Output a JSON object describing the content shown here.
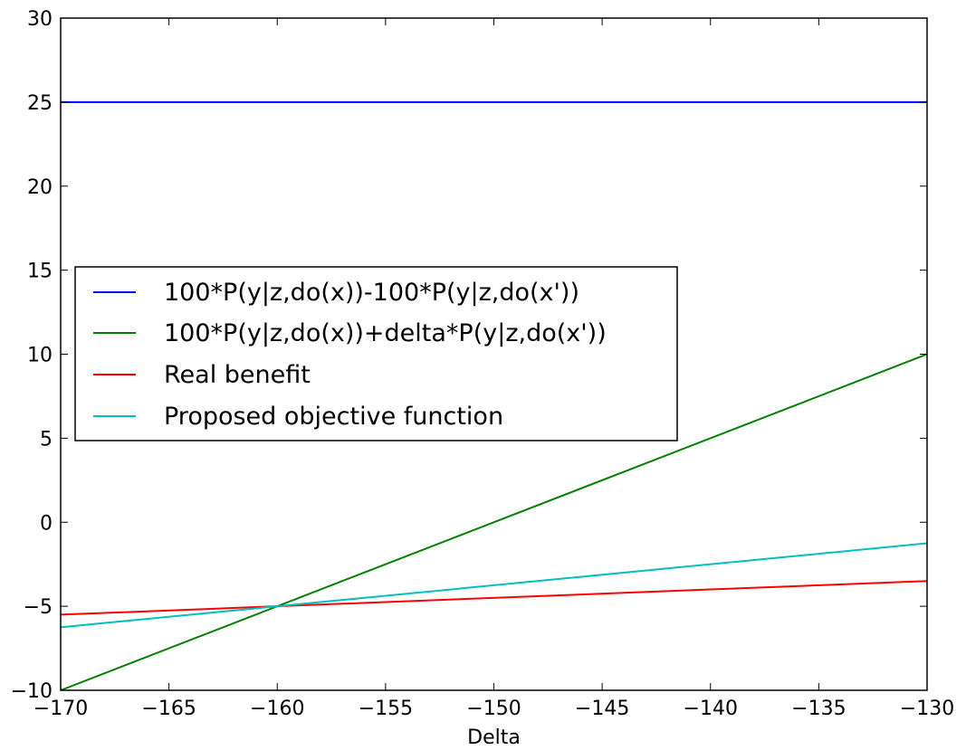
{
  "chart_data": {
    "type": "line",
    "title": "",
    "xlabel": "Delta",
    "ylabel": "",
    "xlim": [
      -170,
      -130
    ],
    "ylim": [
      -10,
      30
    ],
    "xticks": [
      -170,
      -165,
      -160,
      -155,
      -150,
      -145,
      -140,
      -135,
      -130
    ],
    "yticks": [
      -10,
      -5,
      0,
      5,
      10,
      15,
      20,
      25,
      30
    ],
    "xtick_labels": [
      "−170",
      "−165",
      "−160",
      "−155",
      "−150",
      "−145",
      "−140",
      "−135",
      "−130"
    ],
    "ytick_labels": [
      "−10",
      "−5",
      "0",
      "5",
      "10",
      "15",
      "20",
      "25",
      "30"
    ],
    "grid": false,
    "legend_position": "center-left",
    "series": [
      {
        "name": "100*P(y|z,do(x))-100*P(y|z,do(x'))",
        "color": "#0000ff",
        "x": [
          -170,
          -130
        ],
        "y": [
          25,
          25
        ]
      },
      {
        "name": "100*P(y|z,do(x))+delta*P(y|z,do(x'))",
        "color": "#008000",
        "x": [
          -170,
          -130
        ],
        "y": [
          -10,
          10
        ]
      },
      {
        "name": "Real benefit",
        "color": "#ff0000",
        "x": [
          -170,
          -130
        ],
        "y": [
          -5.5,
          -3.5
        ]
      },
      {
        "name": "Proposed objective function",
        "color": "#00bfbf",
        "x": [
          -170,
          -130
        ],
        "y": [
          -6.25,
          -1.25
        ]
      }
    ]
  }
}
